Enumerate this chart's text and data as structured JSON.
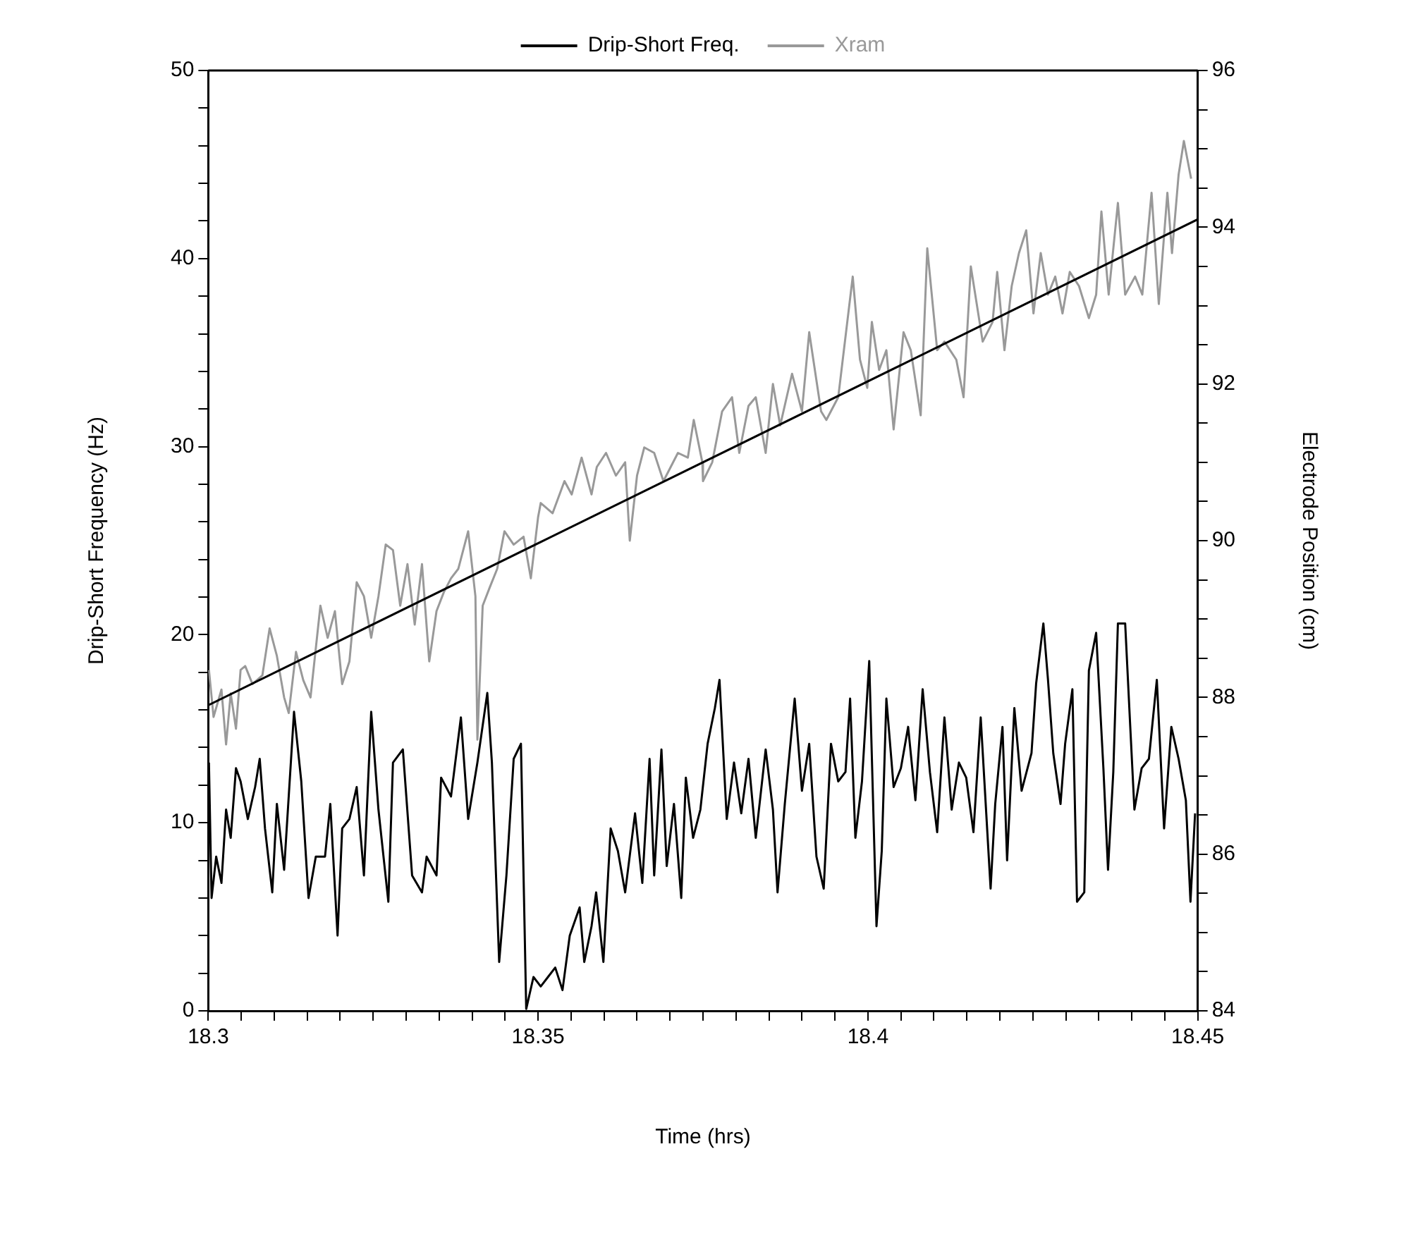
{
  "chart_data": {
    "type": "line",
    "xlabel": "Time (hrs)",
    "ylabel": "Drip-Short Frequency (Hz)",
    "y2label": "Electrode Position (cm)",
    "legend": "top",
    "grid": false,
    "marker": "none",
    "line_style": "solid",
    "xlim": [
      18.3,
      18.45
    ],
    "xticks": [
      18.3,
      {
        "value": 18.305,
        "label": null
      },
      {
        "value": 18.31,
        "label": null
      },
      {
        "value": 18.315,
        "label": null
      },
      {
        "value": 18.32,
        "label": null
      },
      {
        "value": 18.325,
        "label": null
      },
      {
        "value": 18.33,
        "label": null
      },
      {
        "value": 18.335,
        "label": null
      },
      {
        "value": 18.34,
        "label": null
      },
      {
        "value": 18.345,
        "label": null
      },
      18.35,
      {
        "value": 18.355,
        "label": null
      },
      {
        "value": 18.36,
        "label": null
      },
      {
        "value": 18.365,
        "label": null
      },
      {
        "value": 18.37,
        "label": null
      },
      {
        "value": 18.375,
        "label": null
      },
      {
        "value": 18.38,
        "label": null
      },
      {
        "value": 18.385,
        "label": null
      },
      {
        "value": 18.39,
        "label": null
      },
      {
        "value": 18.395,
        "label": null
      },
      18.4,
      {
        "value": 18.405,
        "label": null
      },
      {
        "value": 18.41,
        "label": null
      },
      {
        "value": 18.415,
        "label": null
      },
      {
        "value": 18.42,
        "label": null
      },
      {
        "value": 18.425,
        "label": null
      },
      {
        "value": 18.43,
        "label": null
      },
      {
        "value": 18.435,
        "label": null
      },
      {
        "value": 18.44,
        "label": null
      },
      {
        "value": 18.445,
        "label": null
      },
      18.45
    ],
    "ylim": [
      0,
      50
    ],
    "yticks": [
      0,
      {
        "value": 2,
        "label": null
      },
      {
        "value": 4,
        "label": null
      },
      {
        "value": 6,
        "label": null
      },
      {
        "value": 8,
        "label": null
      },
      10,
      {
        "value": 12,
        "label": null
      },
      {
        "value": 14,
        "label": null
      },
      {
        "value": 16,
        "label": null
      },
      {
        "value": 18,
        "label": null
      },
      20,
      {
        "value": 22,
        "label": null
      },
      {
        "value": 24,
        "label": null
      },
      {
        "value": 26,
        "label": null
      },
      {
        "value": 28,
        "label": null
      },
      30,
      {
        "value": 32,
        "label": null
      },
      {
        "value": 34,
        "label": null
      },
      {
        "value": 36,
        "label": null
      },
      {
        "value": 38,
        "label": null
      },
      40,
      {
        "value": 42,
        "label": null
      },
      {
        "value": 44,
        "label": null
      },
      {
        "value": 46,
        "label": null
      },
      {
        "value": 48,
        "label": null
      },
      50
    ],
    "y2lim": [
      84,
      96
    ],
    "y2ticks": [
      84,
      {
        "value": 84.5,
        "label": null
      },
      {
        "value": 85,
        "label": null
      },
      {
        "value": 85.5,
        "label": null
      },
      86,
      {
        "value": 86.5,
        "label": null
      },
      {
        "value": 87,
        "label": null
      },
      {
        "value": 87.5,
        "label": null
      },
      88,
      {
        "value": 88.5,
        "label": null
      },
      {
        "value": 89,
        "label": null
      },
      {
        "value": 89.5,
        "label": null
      },
      90,
      {
        "value": 90.5,
        "label": null
      },
      {
        "value": 91,
        "label": null
      },
      {
        "value": 91.5,
        "label": null
      },
      92,
      {
        "value": 92.5,
        "label": null
      },
      {
        "value": 93,
        "label": null
      },
      {
        "value": 93.5,
        "label": null
      },
      94,
      {
        "value": 94.5,
        "label": null
      },
      {
        "value": 95,
        "label": null
      },
      {
        "value": 95.5,
        "label": null
      },
      96
    ],
    "series": [
      {
        "name": "Drip-Short Freq.",
        "color": "#000000",
        "x": [
          18.3001,
          18.3005,
          18.3012,
          18.302,
          18.3027,
          18.3034,
          18.3042,
          18.3049,
          18.306,
          18.3071,
          18.3078,
          18.3086,
          18.3097,
          18.3104,
          18.3115,
          18.313,
          18.3141,
          18.3152,
          18.3163,
          18.3177,
          18.3185,
          18.3196,
          18.3203,
          18.3214,
          18.3225,
          18.3236,
          18.3247,
          18.3258,
          18.3273,
          18.328,
          18.3295,
          18.3309,
          18.3324,
          18.3331,
          18.3346,
          18.3353,
          18.3368,
          18.3383,
          18.3394,
          18.3408,
          18.3423,
          18.343,
          18.3441,
          18.3452,
          18.3463,
          18.3474,
          18.3482,
          18.3493,
          18.3504,
          18.3515,
          18.3526,
          18.3537,
          18.3548,
          18.3563,
          18.357,
          18.3581,
          18.3588,
          18.3599,
          18.361,
          18.3621,
          18.3632,
          18.3647,
          18.3658,
          18.3669,
          18.3676,
          18.3687,
          18.3695,
          18.3706,
          18.3717,
          18.3724,
          18.3735,
          18.3746,
          18.3757,
          18.3768,
          18.3775,
          18.3786,
          18.3797,
          18.3808,
          18.3819,
          18.383,
          18.3845,
          18.3856,
          18.3863,
          18.3874,
          18.3889,
          18.39,
          18.3911,
          18.3922,
          18.3933,
          18.3944,
          18.3955,
          18.3966,
          18.3973,
          18.3981,
          18.3991,
          18.4002,
          18.4013,
          18.4021,
          18.4028,
          18.4039,
          18.405,
          18.4061,
          18.4072,
          18.4083,
          18.4094,
          18.4105,
          18.4116,
          18.4127,
          18.4138,
          18.4149,
          18.416,
          18.4171,
          18.4186,
          18.4193,
          18.4204,
          18.4211,
          18.4222,
          18.4233,
          18.4248,
          18.4255,
          18.4266,
          18.4273,
          18.4281,
          18.4292,
          18.4299,
          18.431,
          18.4317,
          18.4328,
          18.4335,
          18.4346,
          18.4357,
          18.4364,
          18.4372,
          18.4379,
          18.439,
          18.4397,
          18.4404,
          18.4415,
          18.4426,
          18.4438,
          18.4449,
          18.446,
          18.4471,
          18.4482,
          18.4489,
          18.4496
        ],
        "values": [
          13.2,
          6.0,
          8.2,
          6.8,
          10.7,
          9.2,
          12.9,
          12.2,
          10.2,
          11.9,
          13.4,
          9.7,
          6.3,
          11.0,
          7.5,
          15.9,
          12.2,
          6.0,
          8.2,
          8.2,
          11.0,
          4.0,
          9.7,
          10.2,
          11.9,
          7.2,
          15.9,
          10.7,
          5.8,
          13.2,
          13.9,
          7.2,
          6.3,
          8.2,
          7.2,
          12.4,
          11.4,
          15.6,
          10.2,
          13.2,
          16.9,
          13.2,
          2.6,
          7.2,
          13.4,
          14.2,
          0.1,
          1.8,
          1.3,
          1.8,
          2.3,
          1.1,
          4.0,
          5.5,
          2.6,
          4.5,
          6.3,
          2.6,
          9.7,
          8.5,
          6.3,
          10.5,
          6.8,
          13.4,
          7.2,
          13.9,
          7.7,
          11.0,
          6.0,
          12.4,
          9.2,
          10.7,
          14.2,
          16.1,
          17.6,
          10.2,
          13.2,
          10.5,
          13.4,
          9.2,
          13.9,
          10.7,
          6.3,
          11.0,
          16.6,
          11.7,
          14.2,
          8.2,
          6.5,
          14.2,
          12.2,
          12.7,
          16.6,
          9.2,
          12.2,
          18.6,
          4.5,
          8.5,
          16.6,
          11.9,
          12.9,
          15.1,
          11.2,
          17.1,
          12.7,
          9.5,
          15.6,
          10.7,
          13.2,
          12.4,
          9.5,
          15.6,
          6.5,
          11.0,
          15.1,
          8.0,
          16.1,
          11.7,
          13.7,
          17.4,
          20.6,
          17.6,
          13.7,
          11.0,
          14.2,
          17.1,
          5.8,
          6.3,
          18.1,
          20.1,
          12.9,
          7.5,
          12.7,
          20.6,
          20.6,
          15.6,
          10.7,
          12.9,
          13.4,
          17.6,
          9.7,
          15.1,
          13.4,
          11.2,
          5.8,
          10.5
        ]
      },
      {
        "name": "Xram",
        "color": "#999999",
        "axis": "y2",
        "x": [
          18.3001,
          18.3008,
          18.302,
          18.3027,
          18.3034,
          18.3042,
          18.3049,
          18.3056,
          18.3067,
          18.3082,
          18.3093,
          18.3104,
          18.3115,
          18.3122,
          18.3133,
          18.3144,
          18.3155,
          18.317,
          18.3181,
          18.3192,
          18.3203,
          18.3214,
          18.3225,
          18.3236,
          18.3247,
          18.3258,
          18.3269,
          18.328,
          18.3291,
          18.3302,
          18.3313,
          18.3324,
          18.3335,
          18.3346,
          18.3357,
          18.3368,
          18.3379,
          18.3394,
          18.3405,
          18.3408,
          18.3416,
          18.3427,
          18.3438,
          18.3449,
          18.3463,
          18.3478,
          18.3489,
          18.35,
          18.3504,
          18.3522,
          18.354,
          18.3551,
          18.3566,
          18.3581,
          18.3589,
          18.3603,
          18.3618,
          18.3632,
          18.3639,
          18.365,
          18.3661,
          18.3676,
          18.369,
          18.3698,
          18.3712,
          18.3727,
          18.3736,
          18.3749,
          18.375,
          18.3764,
          18.3779,
          18.3794,
          18.3805,
          18.3819,
          18.383,
          18.3845,
          18.3856,
          18.3867,
          18.3885,
          18.39,
          18.3911,
          18.3929,
          18.3937,
          18.3955,
          18.3977,
          18.3988,
          18.3999,
          18.4006,
          18.4017,
          18.4028,
          18.4039,
          18.4054,
          18.4065,
          18.408,
          18.409,
          18.4105,
          18.4116,
          18.4134,
          18.4145,
          18.4156,
          18.4174,
          18.4189,
          18.4196,
          18.4207,
          18.4218,
          18.4229,
          18.424,
          18.4251,
          18.4262,
          18.4273,
          18.4284,
          18.4295,
          18.4306,
          18.432,
          18.4335,
          18.4346,
          18.4354,
          18.4365,
          18.4379,
          18.439,
          18.4405,
          18.4416,
          18.443,
          18.4441,
          18.4454,
          18.4461,
          18.4471,
          18.4479,
          18.449
        ],
        "values": [
          88.35,
          87.75,
          88.1,
          87.4,
          88.05,
          87.6,
          88.35,
          88.4,
          88.17,
          88.28,
          88.88,
          88.53,
          88.0,
          87.8,
          88.58,
          88.22,
          88.0,
          89.17,
          88.76,
          89.1,
          88.17,
          88.46,
          89.47,
          89.29,
          88.76,
          89.29,
          89.95,
          89.88,
          89.17,
          89.7,
          88.93,
          89.7,
          88.46,
          89.1,
          89.34,
          89.52,
          89.64,
          90.12,
          89.29,
          87.46,
          89.17,
          89.41,
          89.64,
          90.12,
          89.95,
          90.05,
          89.52,
          90.3,
          90.48,
          90.35,
          90.76,
          90.59,
          91.06,
          90.59,
          90.94,
          91.12,
          90.83,
          91.0,
          90.0,
          90.83,
          91.19,
          91.12,
          90.76,
          90.89,
          91.12,
          91.06,
          91.54,
          91.0,
          90.76,
          91.0,
          91.65,
          91.83,
          91.12,
          91.72,
          91.83,
          91.12,
          92.0,
          91.47,
          92.13,
          91.65,
          92.66,
          91.65,
          91.54,
          91.83,
          93.37,
          92.31,
          91.95,
          92.79,
          92.18,
          92.43,
          91.42,
          92.66,
          92.43,
          91.6,
          93.73,
          92.43,
          92.54,
          92.31,
          91.83,
          93.5,
          92.54,
          92.79,
          93.43,
          92.43,
          93.25,
          93.67,
          93.96,
          92.9,
          93.67,
          93.14,
          93.37,
          92.9,
          93.43,
          93.25,
          92.84,
          93.14,
          94.2,
          93.14,
          94.31,
          93.14,
          93.37,
          93.14,
          94.44,
          93.02,
          94.44,
          93.67,
          94.67,
          95.1,
          94.62
        ]
      },
      {
        "color": "#000000",
        "axis": "y2",
        "x": [
          18.3,
          18.45
        ],
        "values": [
          87.9,
          94.1
        ]
      }
    ]
  }
}
